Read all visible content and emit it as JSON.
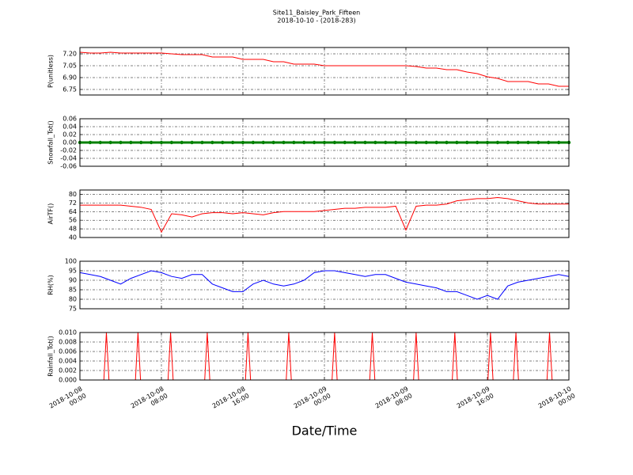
{
  "chart_data": [
    {
      "type": "line",
      "title": "Site11_Baisley_Park_Fifteen",
      "subtitle": "2018-10-10 - (2018-283)",
      "ylabel": "P(unitless)",
      "grid": true,
      "x": [
        "2018-10-08 00:00",
        "2018-10-08 01:00",
        "2018-10-08 02:00",
        "2018-10-08 03:00",
        "2018-10-08 04:00",
        "2018-10-08 05:00",
        "2018-10-08 06:00",
        "2018-10-08 07:00",
        "2018-10-08 08:00",
        "2018-10-08 09:00",
        "2018-10-08 10:00",
        "2018-10-08 11:00",
        "2018-10-08 12:00",
        "2018-10-08 13:00",
        "2018-10-08 14:00",
        "2018-10-08 15:00",
        "2018-10-08 16:00",
        "2018-10-08 17:00",
        "2018-10-08 18:00",
        "2018-10-08 19:00",
        "2018-10-08 20:00",
        "2018-10-08 21:00",
        "2018-10-08 22:00",
        "2018-10-08 23:00",
        "2018-10-09 00:00",
        "2018-10-09 01:00",
        "2018-10-09 02:00",
        "2018-10-09 03:00",
        "2018-10-09 04:00",
        "2018-10-09 05:00",
        "2018-10-09 06:00",
        "2018-10-09 07:00",
        "2018-10-09 08:00",
        "2018-10-09 09:00",
        "2018-10-09 10:00",
        "2018-10-09 11:00",
        "2018-10-09 12:00",
        "2018-10-09 13:00",
        "2018-10-09 14:00",
        "2018-10-09 15:00",
        "2018-10-09 16:00",
        "2018-10-09 17:00",
        "2018-10-09 18:00",
        "2018-10-09 19:00",
        "2018-10-09 20:00",
        "2018-10-09 21:00",
        "2018-10-09 22:00",
        "2018-10-09 23:00",
        "2018-10-10 00:00"
      ],
      "series": [
        {
          "color": "#ff0000",
          "values": [
            7.22,
            7.21,
            7.21,
            7.22,
            7.21,
            7.21,
            7.21,
            7.21,
            7.21,
            7.2,
            7.19,
            7.19,
            7.19,
            7.16,
            7.16,
            7.16,
            7.13,
            7.13,
            7.13,
            7.1,
            7.1,
            7.07,
            7.07,
            7.07,
            7.05,
            7.05,
            7.05,
            7.05,
            7.05,
            7.05,
            7.05,
            7.05,
            7.05,
            7.04,
            7.02,
            7.02,
            7.0,
            7.0,
            6.97,
            6.95,
            6.91,
            6.89,
            6.85,
            6.85,
            6.85,
            6.82,
            6.82,
            6.79,
            6.79
          ]
        }
      ],
      "xlim": [
        "2018-10-08 00:00",
        "2018-10-10 00:00"
      ],
      "xticks": [
        "2018-10-08 00:00",
        "2018-10-08 08:00",
        "2018-10-08 16:00",
        "2018-10-09 00:00",
        "2018-10-09 08:00",
        "2018-10-09 16:00",
        "2018-10-10 00:00"
      ],
      "ylim": [
        6.68,
        7.28
      ],
      "yticks": [
        6.75,
        {
          "value": 6.9,
          "label": "6.90"
        },
        7.05,
        {
          "value": 7.2,
          "label": "7.20"
        }
      ]
    },
    {
      "type": "line",
      "ylabel": "Snowfall_Tot()",
      "grid": true,
      "markers": true,
      "x": [
        "2018-10-08 00:00",
        "2018-10-08 01:00",
        "2018-10-08 02:00",
        "2018-10-08 03:00",
        "2018-10-08 04:00",
        "2018-10-08 05:00",
        "2018-10-08 06:00",
        "2018-10-08 07:00",
        "2018-10-08 08:00",
        "2018-10-08 09:00",
        "2018-10-08 10:00",
        "2018-10-08 11:00",
        "2018-10-08 12:00",
        "2018-10-08 13:00",
        "2018-10-08 14:00",
        "2018-10-08 15:00",
        "2018-10-08 16:00",
        "2018-10-08 17:00",
        "2018-10-08 18:00",
        "2018-10-08 19:00",
        "2018-10-08 20:00",
        "2018-10-08 21:00",
        "2018-10-08 22:00",
        "2018-10-08 23:00",
        "2018-10-09 00:00",
        "2018-10-09 01:00",
        "2018-10-09 02:00",
        "2018-10-09 03:00",
        "2018-10-09 04:00",
        "2018-10-09 05:00",
        "2018-10-09 06:00",
        "2018-10-09 07:00",
        "2018-10-09 08:00",
        "2018-10-09 09:00",
        "2018-10-09 10:00",
        "2018-10-09 11:00",
        "2018-10-09 12:00",
        "2018-10-09 13:00",
        "2018-10-09 14:00",
        "2018-10-09 15:00",
        "2018-10-09 16:00",
        "2018-10-09 17:00",
        "2018-10-09 18:00",
        "2018-10-09 19:00",
        "2018-10-09 20:00",
        "2018-10-09 21:00",
        "2018-10-09 22:00",
        "2018-10-09 23:00",
        "2018-10-10 00:00"
      ],
      "series": [
        {
          "color": "#008000",
          "values": [
            0,
            0,
            0,
            0,
            0,
            0,
            0,
            0,
            0,
            0,
            0,
            0,
            0,
            0,
            0,
            0,
            0,
            0,
            0,
            0,
            0,
            0,
            0,
            0,
            0,
            0,
            0,
            0,
            0,
            0,
            0,
            0,
            0,
            0,
            0,
            0,
            0,
            0,
            0,
            0,
            0,
            0,
            0,
            0,
            0,
            0,
            0,
            0,
            0
          ]
        }
      ],
      "xlim": [
        "2018-10-08 00:00",
        "2018-10-10 00:00"
      ],
      "xticks": [
        "2018-10-08 00:00",
        "2018-10-08 08:00",
        "2018-10-08 16:00",
        "2018-10-09 00:00",
        "2018-10-09 08:00",
        "2018-10-09 16:00",
        "2018-10-10 00:00"
      ],
      "ylim": [
        -0.06,
        0.06
      ],
      "yticks": [
        -0.06,
        -0.04,
        -0.02,
        {
          "value": 0,
          "label": "0.00"
        },
        0.02,
        0.04,
        0.06
      ]
    },
    {
      "type": "line",
      "ylabel": "AirTF()",
      "grid": true,
      "x": [
        "2018-10-08 00:00",
        "2018-10-08 01:00",
        "2018-10-08 02:00",
        "2018-10-08 03:00",
        "2018-10-08 04:00",
        "2018-10-08 05:00",
        "2018-10-08 06:00",
        "2018-10-08 07:00",
        "2018-10-08 08:00",
        "2018-10-08 09:00",
        "2018-10-08 10:00",
        "2018-10-08 11:00",
        "2018-10-08 12:00",
        "2018-10-08 13:00",
        "2018-10-08 14:00",
        "2018-10-08 15:00",
        "2018-10-08 16:00",
        "2018-10-08 17:00",
        "2018-10-08 18:00",
        "2018-10-08 19:00",
        "2018-10-08 20:00",
        "2018-10-08 21:00",
        "2018-10-08 22:00",
        "2018-10-08 23:00",
        "2018-10-09 00:00",
        "2018-10-09 01:00",
        "2018-10-09 02:00",
        "2018-10-09 03:00",
        "2018-10-09 04:00",
        "2018-10-09 05:00",
        "2018-10-09 06:00",
        "2018-10-09 07:00",
        "2018-10-09 08:00",
        "2018-10-09 09:00",
        "2018-10-09 10:00",
        "2018-10-09 11:00",
        "2018-10-09 12:00",
        "2018-10-09 13:00",
        "2018-10-09 14:00",
        "2018-10-09 15:00",
        "2018-10-09 16:00",
        "2018-10-09 17:00",
        "2018-10-09 18:00",
        "2018-10-09 19:00",
        "2018-10-09 20:00",
        "2018-10-09 21:00",
        "2018-10-09 22:00",
        "2018-10-09 23:00",
        "2018-10-10 00:00"
      ],
      "series": [
        {
          "color": "#ff0000",
          "values": [
            70,
            70,
            70,
            70,
            70,
            69,
            68,
            66,
            45,
            62,
            61,
            59,
            62,
            63,
            63,
            62,
            63,
            62,
            61,
            63,
            64,
            64,
            64,
            64,
            65,
            66,
            67,
            67,
            68,
            68,
            68,
            69,
            47,
            69,
            70,
            70,
            71,
            74,
            75,
            76,
            76,
            77,
            76,
            74,
            72,
            71,
            71,
            71,
            71
          ]
        }
      ],
      "xlim": [
        "2018-10-08 00:00",
        "2018-10-10 00:00"
      ],
      "xticks": [
        "2018-10-08 00:00",
        "2018-10-08 08:00",
        "2018-10-08 16:00",
        "2018-10-09 00:00",
        "2018-10-09 08:00",
        "2018-10-09 16:00",
        "2018-10-10 00:00"
      ],
      "ylim": [
        40,
        84
      ],
      "yticks": [
        40,
        48,
        56,
        64,
        72,
        80
      ]
    },
    {
      "type": "line",
      "ylabel": "RH(%)",
      "grid": true,
      "x": [
        "2018-10-08 00:00",
        "2018-10-08 01:00",
        "2018-10-08 02:00",
        "2018-10-08 03:00",
        "2018-10-08 04:00",
        "2018-10-08 05:00",
        "2018-10-08 06:00",
        "2018-10-08 07:00",
        "2018-10-08 08:00",
        "2018-10-08 09:00",
        "2018-10-08 10:00",
        "2018-10-08 11:00",
        "2018-10-08 12:00",
        "2018-10-08 13:00",
        "2018-10-08 14:00",
        "2018-10-08 15:00",
        "2018-10-08 16:00",
        "2018-10-08 17:00",
        "2018-10-08 18:00",
        "2018-10-08 19:00",
        "2018-10-08 20:00",
        "2018-10-08 21:00",
        "2018-10-08 22:00",
        "2018-10-08 23:00",
        "2018-10-09 00:00",
        "2018-10-09 01:00",
        "2018-10-09 02:00",
        "2018-10-09 03:00",
        "2018-10-09 04:00",
        "2018-10-09 05:00",
        "2018-10-09 06:00",
        "2018-10-09 07:00",
        "2018-10-09 08:00",
        "2018-10-09 09:00",
        "2018-10-09 10:00",
        "2018-10-09 11:00",
        "2018-10-09 12:00",
        "2018-10-09 13:00",
        "2018-10-09 14:00",
        "2018-10-09 15:00",
        "2018-10-09 16:00",
        "2018-10-09 17:00",
        "2018-10-09 18:00",
        "2018-10-09 19:00",
        "2018-10-09 20:00",
        "2018-10-09 21:00",
        "2018-10-09 22:00",
        "2018-10-09 23:00",
        "2018-10-10 00:00"
      ],
      "series": [
        {
          "color": "#0000ff",
          "values": [
            94,
            93,
            92,
            90,
            88,
            91,
            93,
            95,
            94,
            92,
            91,
            93,
            93,
            88,
            86,
            84,
            84,
            88,
            90,
            88,
            87,
            88,
            90,
            94,
            95,
            95,
            94,
            93,
            92,
            93,
            93,
            91,
            89,
            88,
            87,
            86,
            84,
            84,
            82,
            80,
            82,
            80,
            87,
            89,
            90,
            91,
            92,
            93,
            92
          ]
        }
      ],
      "xlim": [
        "2018-10-08 00:00",
        "2018-10-10 00:00"
      ],
      "xticks": [
        "2018-10-08 00:00",
        "2018-10-08 08:00",
        "2018-10-08 16:00",
        "2018-10-09 00:00",
        "2018-10-09 08:00",
        "2018-10-09 16:00",
        "2018-10-10 00:00"
      ],
      "ylim": [
        75,
        100
      ],
      "yticks": [
        75,
        80,
        85,
        90,
        95,
        100
      ]
    },
    {
      "type": "line",
      "ylabel": "Rainfall_Tot()",
      "xlabel": "Date/Time",
      "grid": true,
      "xtick_labels": true,
      "x": [
        "2018-10-08 00:00",
        "2018-10-08 02:21",
        "2018-10-08 02:36",
        "2018-10-08 02:51",
        "2018-10-08 05:27",
        "2018-10-08 05:42",
        "2018-10-08 05:57",
        "2018-10-08 08:39",
        "2018-10-08 08:54",
        "2018-10-08 09:09",
        "2018-10-08 12:15",
        "2018-10-08 12:30",
        "2018-10-08 12:45",
        "2018-10-08 16:15",
        "2018-10-08 16:30",
        "2018-10-08 16:45",
        "2018-10-08 20:15",
        "2018-10-08 20:30",
        "2018-10-08 20:45",
        "2018-10-09 00:45",
        "2018-10-09 01:00",
        "2018-10-09 01:15",
        "2018-10-09 04:27",
        "2018-10-09 04:42",
        "2018-10-09 04:57",
        "2018-10-09 08:45",
        "2018-10-09 09:00",
        "2018-10-09 09:15",
        "2018-10-09 12:33",
        "2018-10-09 12:48",
        "2018-10-09 13:03",
        "2018-10-09 16:03",
        "2018-10-09 16:18",
        "2018-10-09 16:33",
        "2018-10-09 18:33",
        "2018-10-09 18:48",
        "2018-10-09 19:03",
        "2018-10-09 21:51",
        "2018-10-09 22:06",
        "2018-10-09 22:21",
        "2018-10-10 00:00"
      ],
      "series": [
        {
          "color": "#ff0000",
          "values": [
            0,
            0,
            0.01,
            0,
            0,
            0.01,
            0,
            0,
            0.01,
            0,
            0,
            0.01,
            0,
            0,
            0.01,
            0,
            0,
            0.01,
            0,
            0,
            0.01,
            0,
            0,
            0.01,
            0,
            0,
            0.01,
            0,
            0,
            0.01,
            0,
            0,
            0.01,
            0,
            0,
            0.01,
            0,
            0,
            0.01,
            0,
            0
          ]
        }
      ],
      "xlim": [
        "2018-10-08 00:00",
        "2018-10-10 00:00"
      ],
      "xticks": [
        "2018-10-08 00:00",
        "2018-10-08 08:00",
        "2018-10-08 16:00",
        "2018-10-09 00:00",
        "2018-10-09 08:00",
        "2018-10-09 16:00",
        "2018-10-10 00:00"
      ],
      "ylim": [
        0,
        0.01
      ],
      "yticks": [
        {
          "value": 0,
          "label": "0.000"
        },
        {
          "value": 0.002,
          "label": "0.002"
        },
        {
          "value": 0.004,
          "label": "0.004"
        },
        {
          "value": 0.006,
          "label": "0.006"
        },
        {
          "value": 0.008,
          "label": "0.008"
        },
        {
          "value": 0.01,
          "label": "0.010"
        }
      ]
    }
  ]
}
